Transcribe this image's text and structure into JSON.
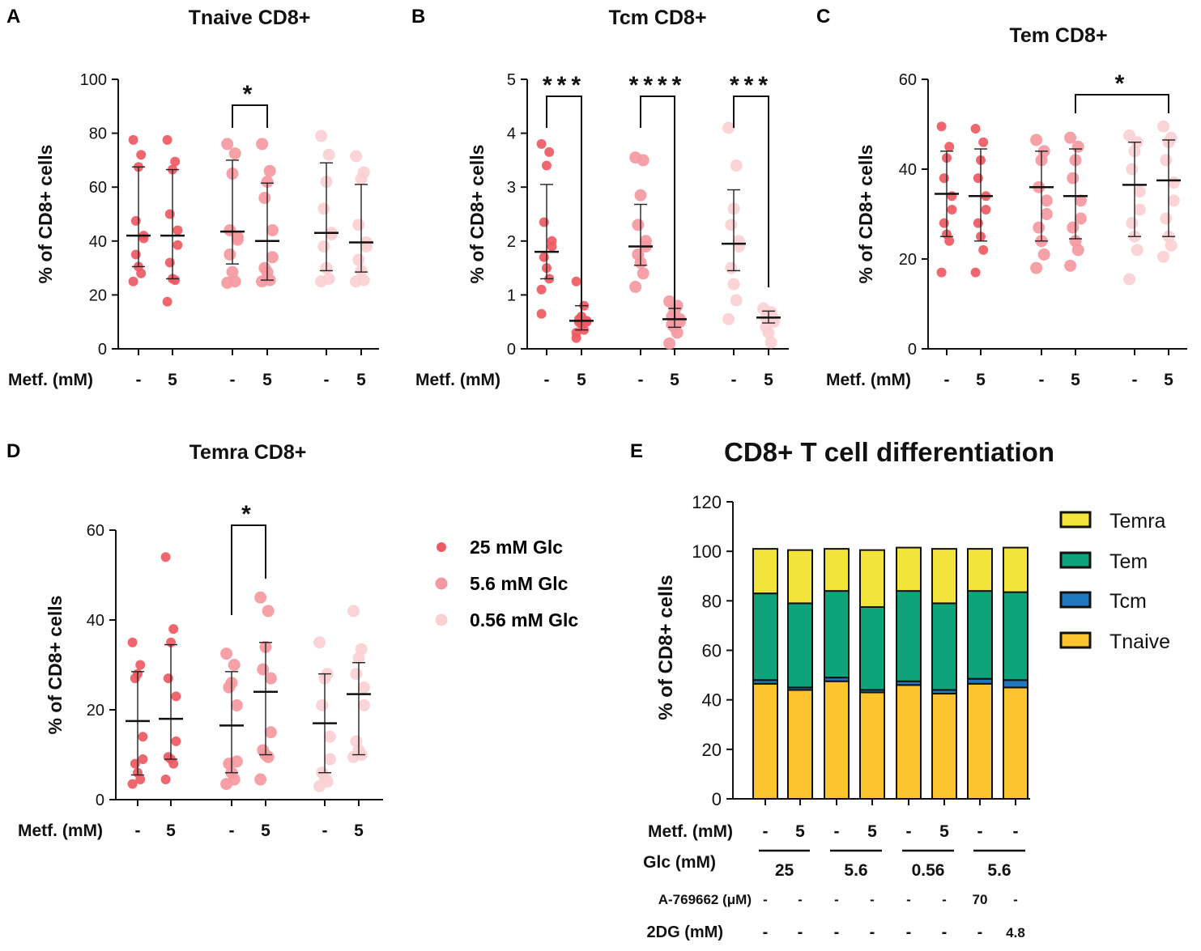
{
  "figure": {
    "y_label": "% of CD8+ cells",
    "metformin_label": "Metf. (mM)",
    "legend": [
      {
        "name": "25 mM Glc",
        "color": "#ee5a62"
      },
      {
        "name": "5.6 mM Glc",
        "color": "#f4999f"
      },
      {
        "name": "0.56 mM Glc",
        "color": "#fad0d3"
      }
    ]
  },
  "chart_data": [
    {
      "panel": "A",
      "type": "scatter",
      "title": "Tnaive CD8+",
      "ylabel": "% of CD8+ cells",
      "xlabel": "Metf. (mM)",
      "ylim": [
        0,
        100
      ],
      "yticks": [
        0,
        20,
        40,
        60,
        80,
        100
      ],
      "x_tick_labels": [
        "-",
        "5",
        "-",
        "5",
        "-",
        "5"
      ],
      "groups": [
        {
          "glc": "25 mM Glc",
          "metf": "-",
          "mean": 42,
          "sd": [
            30.5,
            67.5
          ],
          "points": [
            77.5,
            72,
            67.5,
            47.5,
            42,
            41,
            35,
            30.5,
            28,
            25
          ]
        },
        {
          "glc": "25 mM Glc",
          "metf": "5",
          "mean": 42,
          "sd": [
            26,
            66.5
          ],
          "points": [
            77.5,
            69.5,
            66.5,
            50,
            44,
            38.5,
            32,
            26,
            25.5,
            17.5
          ]
        },
        {
          "glc": "5.6 mM Glc",
          "metf": "-",
          "mean": 43.5,
          "sd": [
            31.5,
            70
          ],
          "points": [
            76,
            72.5,
            65,
            44,
            41.5,
            40.5,
            35,
            28.5,
            25,
            24.5
          ]
        },
        {
          "glc": "5.6 mM Glc",
          "metf": "5",
          "mean": 40,
          "sd": [
            25.5,
            61.5
          ],
          "points": [
            76,
            66,
            62,
            56,
            44,
            34,
            30,
            28.5,
            25.5,
            25
          ]
        },
        {
          "glc": "0.56 mM Glc",
          "metf": "-",
          "mean": 43,
          "sd": [
            29,
            69
          ],
          "points": [
            79,
            72,
            62,
            52,
            43,
            42.5,
            38,
            30,
            26,
            25
          ]
        },
        {
          "glc": "0.56 mM Glc",
          "metf": "5",
          "mean": 39.5,
          "sd": [
            28.5,
            61
          ],
          "points": [
            71.5,
            65.5,
            63,
            46,
            39.5,
            38,
            33,
            29,
            25.5,
            25
          ]
        }
      ],
      "significance": [
        {
          "from": 2,
          "to": 3,
          "label": "*"
        }
      ]
    },
    {
      "panel": "B",
      "type": "scatter",
      "title": "Tcm CD8+",
      "ylabel": "% of CD8+ cells",
      "xlabel": "Metf. (mM)",
      "ylim": [
        0,
        5
      ],
      "yticks": [
        0,
        1,
        2,
        3,
        4,
        5
      ],
      "x_tick_labels": [
        "-",
        "5",
        "-",
        "5",
        "-",
        "5"
      ],
      "groups": [
        {
          "glc": "25 mM Glc",
          "metf": "-",
          "mean": 1.8,
          "sd": [
            1.3,
            3.05
          ],
          "points": [
            3.8,
            3.65,
            3.4,
            2.35,
            2.0,
            1.9,
            1.7,
            1.5,
            1.3,
            1.1,
            0.65
          ]
        },
        {
          "glc": "25 mM Glc",
          "metf": "5",
          "mean": 0.52,
          "sd": [
            0.35,
            0.8
          ],
          "points": [
            1.25,
            0.8,
            0.6,
            0.55,
            0.52,
            0.5,
            0.5,
            0.45,
            0.35,
            0.3,
            0.2
          ]
        },
        {
          "glc": "5.6 mM Glc",
          "metf": "-",
          "mean": 1.9,
          "sd": [
            1.55,
            2.68
          ],
          "points": [
            3.55,
            3.5,
            2.85,
            2.3,
            2.0,
            1.9,
            1.75,
            1.6,
            1.4,
            1.15
          ]
        },
        {
          "glc": "5.6 mM Glc",
          "metf": "5",
          "mean": 0.55,
          "sd": [
            0.4,
            0.75
          ],
          "points": [
            0.88,
            0.8,
            0.7,
            0.6,
            0.55,
            0.5,
            0.45,
            0.4,
            0.3,
            0.1
          ]
        },
        {
          "glc": "0.56 mM Glc",
          "metf": "-",
          "mean": 1.95,
          "sd": [
            1.45,
            2.95
          ],
          "points": [
            4.1,
            3.4,
            2.6,
            2.3,
            2.0,
            1.9,
            1.5,
            1.2,
            0.9,
            0.55
          ]
        },
        {
          "glc": "0.56 mM Glc",
          "metf": "5",
          "mean": 0.58,
          "sd": [
            0.48,
            0.7
          ],
          "points": [
            0.75,
            0.68,
            0.6,
            0.58,
            0.55,
            0.5,
            0.4,
            0.3,
            0.12
          ]
        }
      ],
      "significance": [
        {
          "from": 0,
          "to": 1,
          "label": "***"
        },
        {
          "from": 2,
          "to": 3,
          "label": "****"
        },
        {
          "from": 4,
          "to": 5,
          "label": "***"
        }
      ]
    },
    {
      "panel": "C",
      "type": "scatter",
      "title": "Tem CD8+",
      "ylabel": "% of CD8+ cells",
      "xlabel": "Metf. (mM)",
      "ylim": [
        0,
        60
      ],
      "yticks": [
        0,
        20,
        40,
        60
      ],
      "x_tick_labels": [
        "-",
        "5",
        "-",
        "5",
        "-",
        "5"
      ],
      "groups": [
        {
          "glc": "25 mM Glc",
          "metf": "-",
          "mean": 34.5,
          "sd": [
            25,
            44
          ],
          "points": [
            49.5,
            45,
            42.5,
            38,
            34,
            31,
            28,
            25.5,
            24,
            17
          ]
        },
        {
          "glc": "25 mM Glc",
          "metf": "5",
          "mean": 34,
          "sd": [
            24,
            44.5
          ],
          "points": [
            49,
            46,
            42,
            38,
            34,
            31,
            28,
            25,
            22,
            17
          ]
        },
        {
          "glc": "5.6 mM Glc",
          "metf": "-",
          "mean": 36,
          "sd": [
            24,
            44
          ],
          "points": [
            46.5,
            44,
            42,
            36,
            33,
            30,
            27,
            24,
            21,
            18
          ]
        },
        {
          "glc": "5.6 mM Glc",
          "metf": "5",
          "mean": 34,
          "sd": [
            24.5,
            44.5
          ],
          "points": [
            47,
            45,
            42,
            38,
            33,
            29,
            27,
            24,
            22,
            18.5
          ]
        },
        {
          "glc": "0.56 mM Glc",
          "metf": "-",
          "mean": 36.5,
          "sd": [
            25,
            46
          ],
          "points": [
            47.5,
            46,
            44,
            40,
            35,
            31,
            28,
            25,
            22,
            15.5
          ]
        },
        {
          "glc": "0.56 mM Glc",
          "metf": "5",
          "mean": 37.5,
          "sd": [
            25,
            46.5
          ],
          "points": [
            49.5,
            47,
            46,
            42,
            37,
            33,
            29,
            25,
            23,
            20.5
          ]
        }
      ],
      "significance": [
        {
          "from": 3,
          "to": 5,
          "label": "*"
        }
      ]
    },
    {
      "panel": "D",
      "type": "scatter",
      "title": "Temra CD8+",
      "ylabel": "% of CD8+ cells",
      "xlabel": "Metf. (mM)",
      "ylim": [
        0,
        60
      ],
      "yticks": [
        0,
        20,
        40,
        60
      ],
      "x_tick_labels": [
        "-",
        "5",
        "-",
        "5",
        "-",
        "5"
      ],
      "groups": [
        {
          "glc": "25 mM Glc",
          "metf": "-",
          "mean": 17.5,
          "sd": [
            5.5,
            28.5
          ],
          "points": [
            35,
            30,
            28,
            27,
            14,
            9,
            8,
            6,
            4.5,
            3.5
          ]
        },
        {
          "glc": "25 mM Glc",
          "metf": "5",
          "mean": 18,
          "sd": [
            9,
            34.5
          ],
          "points": [
            54,
            38,
            35,
            27,
            23,
            13,
            9.5,
            9,
            8,
            4.5
          ]
        },
        {
          "glc": "5.6 mM Glc",
          "metf": "-",
          "mean": 16.5,
          "sd": [
            6,
            28.5
          ],
          "points": [
            32.5,
            30,
            26,
            25,
            21,
            8.5,
            8,
            6,
            4.5,
            3.5
          ]
        },
        {
          "glc": "5.6 mM Glc",
          "metf": "5",
          "mean": 24,
          "sd": [
            10,
            35
          ],
          "points": [
            45,
            42,
            34,
            29,
            27,
            15,
            11,
            10,
            9.5,
            4.5
          ]
        },
        {
          "glc": "0.56 mM Glc",
          "metf": "-",
          "mean": 17,
          "sd": [
            6,
            28
          ],
          "points": [
            35,
            28,
            27,
            21,
            14,
            9,
            6,
            5,
            4,
            3
          ]
        },
        {
          "glc": "0.56 mM Glc",
          "metf": "5",
          "mean": 23.5,
          "sd": [
            10,
            30.5
          ],
          "points": [
            42,
            33.5,
            31.5,
            28,
            25,
            21,
            13,
            11,
            10,
            9.5
          ]
        }
      ],
      "significance": [
        {
          "from": 2,
          "to": 3,
          "label": "*"
        }
      ]
    },
    {
      "panel": "E",
      "type": "bar",
      "stacked": true,
      "title": "CD8+ T cell differentiation",
      "ylabel": "% of CD8+ cells",
      "ylim": [
        0,
        120
      ],
      "yticks": [
        0,
        20,
        40,
        60,
        80,
        100,
        120
      ],
      "series": [
        {
          "name": "Tnaive",
          "color": "#fcc42f",
          "values": [
            46.5,
            44,
            47.5,
            43,
            46,
            42.5,
            46.5,
            45
          ]
        },
        {
          "name": "Tcm",
          "color": "#1f78c0",
          "values": [
            1.5,
            1,
            1.5,
            1,
            1.5,
            1.5,
            2,
            3
          ]
        },
        {
          "name": "Tem",
          "color": "#0fa37c",
          "values": [
            35,
            34,
            35,
            33.5,
            36.5,
            35,
            35.5,
            35.5
          ]
        },
        {
          "name": "Temra",
          "color": "#f3e43c",
          "values": [
            18,
            21.5,
            17,
            23,
            17.5,
            22,
            17,
            18
          ]
        }
      ],
      "legend_order": [
        "Temra",
        "Tem",
        "Tcm",
        "Tnaive"
      ],
      "conditions": {
        "metf_label": "Metf. (mM)",
        "metf": [
          "-",
          "5",
          "-",
          "5",
          "-",
          "5",
          "-",
          "-"
        ],
        "glc_label": "Glc (mM)",
        "glc_groups": [
          {
            "label": "25",
            "start": 0,
            "end": 1
          },
          {
            "label": "5.6",
            "start": 2,
            "end": 3
          },
          {
            "label": "0.56",
            "start": 4,
            "end": 5
          },
          {
            "label": "5.6",
            "start": 6,
            "end": 7
          }
        ],
        "a769662_label": "A-769662 (μM)",
        "a769662": [
          "-",
          "-",
          "-",
          "-",
          "-",
          "-",
          "70",
          "-"
        ],
        "dg_label": "2DG (mM)",
        "dg": [
          "-",
          "-",
          "-",
          "-",
          "-",
          "-",
          "-",
          "4.8"
        ]
      }
    }
  ]
}
